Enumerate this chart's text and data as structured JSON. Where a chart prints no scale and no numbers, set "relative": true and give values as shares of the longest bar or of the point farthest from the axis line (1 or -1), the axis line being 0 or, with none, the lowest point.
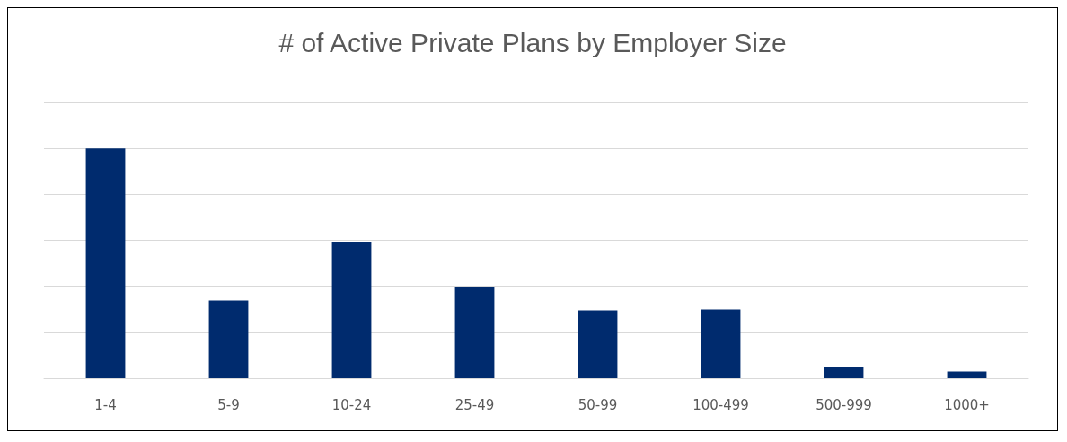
{
  "chart_data": {
    "type": "bar",
    "title": "# of Active Private Plans by Employer Size",
    "categories": [
      "1-4",
      "5-9",
      "10-24",
      "25-49",
      "50-99",
      "100-499",
      "500-999",
      "1000+"
    ],
    "values": [
      1,
      0.338,
      0.594,
      0.396,
      0.295,
      0.299,
      0.047,
      0.029
    ],
    "color": "#002b6e",
    "relative": true,
    "grid": "y"
  }
}
